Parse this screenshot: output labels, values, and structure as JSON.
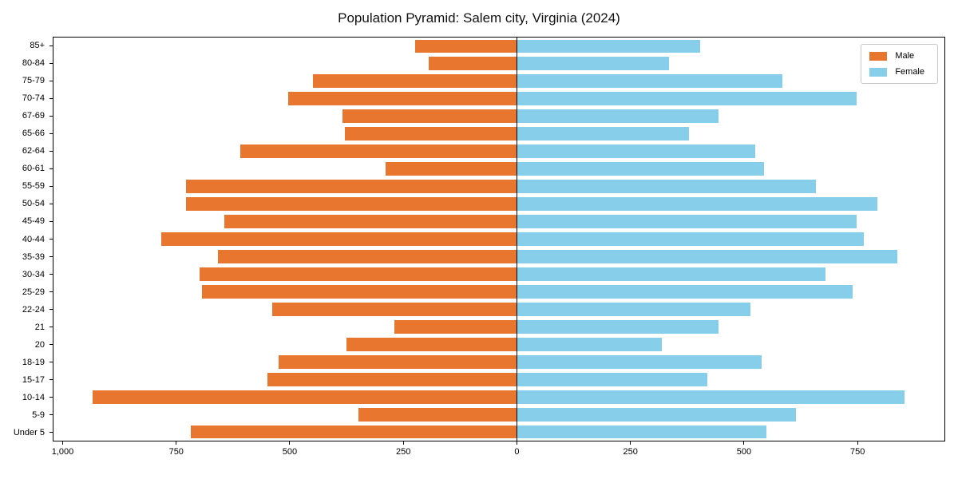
{
  "title": "Population Pyramid: Salem city, Virginia (2024)",
  "legend": {
    "male_label": "Male",
    "female_label": "Female"
  },
  "colors": {
    "male": "#e8762f",
    "female": "#87ceeb",
    "axis": "#000000"
  },
  "chart_data": {
    "type": "bar",
    "subtype": "population-pyramid",
    "title": "Population Pyramid: Salem city, Virginia (2024)",
    "categories_top_to_bottom": [
      "85+",
      "80-84",
      "75-79",
      "70-74",
      "67-69",
      "65-66",
      "62-64",
      "60-61",
      "55-59",
      "50-54",
      "45-49",
      "40-44",
      "35-39",
      "30-34",
      "25-29",
      "22-24",
      "21",
      "20",
      "18-19",
      "15-17",
      "10-14",
      "5-9",
      "Under 5"
    ],
    "series": [
      {
        "name": "Male",
        "side": "left",
        "color": "#e8762f",
        "values": [
          225,
          195,
          450,
          505,
          385,
          380,
          610,
          290,
          730,
          730,
          645,
          785,
          660,
          700,
          695,
          540,
          270,
          375,
          525,
          550,
          935,
          350,
          720
        ]
      },
      {
        "name": "Female",
        "side": "right",
        "color": "#87ceeb",
        "values": [
          405,
          335,
          585,
          750,
          445,
          380,
          525,
          545,
          660,
          795,
          750,
          765,
          840,
          680,
          740,
          515,
          445,
          320,
          540,
          420,
          855,
          615,
          550
        ]
      }
    ],
    "x_tick_labels": [
      "1,000",
      "750",
      "500",
      "250",
      "0",
      "250",
      "500",
      "750"
    ],
    "x_tick_values": [
      -1000,
      -750,
      -500,
      -250,
      0,
      250,
      500,
      750
    ],
    "xlim": [
      -1022,
      943
    ],
    "grid": false,
    "legend_position": "upper-right",
    "xlabel": "",
    "ylabel": ""
  }
}
